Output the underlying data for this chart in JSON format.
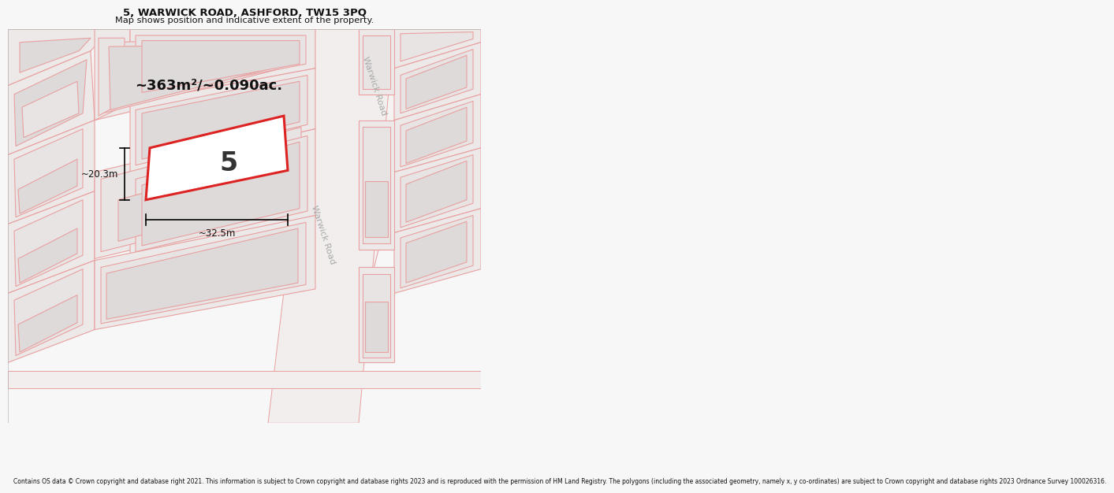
{
  "title": "5, WARWICK ROAD, ASHFORD, TW15 3PQ",
  "subtitle": "Map shows position and indicative extent of the property.",
  "area_text": "~363m²/~0.090ac.",
  "number_label": "5",
  "dim_width": "~32.5m",
  "dim_height": "~20.3m",
  "bg_color": "#f7f7f7",
  "map_bg": "#f0eeee",
  "road_label": "Warwick Road",
  "footer_text": "Contains OS data © Crown copyright and database right 2021. This information is subject to Crown copyright and database rights 2023 and is reproduced with the permission of HM Land Registry. The polygons (including the associated geometry, namely x, y co-ordinates) are subject to Crown copyright and database rights 2023 Ordnance Survey 100026316.",
  "highlight_fill": "#ffffff",
  "highlight_stroke": "#dd2222",
  "building_fill": "#e8e4e4",
  "building_stroke": "#e8a0a0",
  "road_fill": "#f5f2f2",
  "road_stroke": "#e8a0a0",
  "parcel_fill": "#ede9e9",
  "parcel_stroke": "#e8a0a0"
}
